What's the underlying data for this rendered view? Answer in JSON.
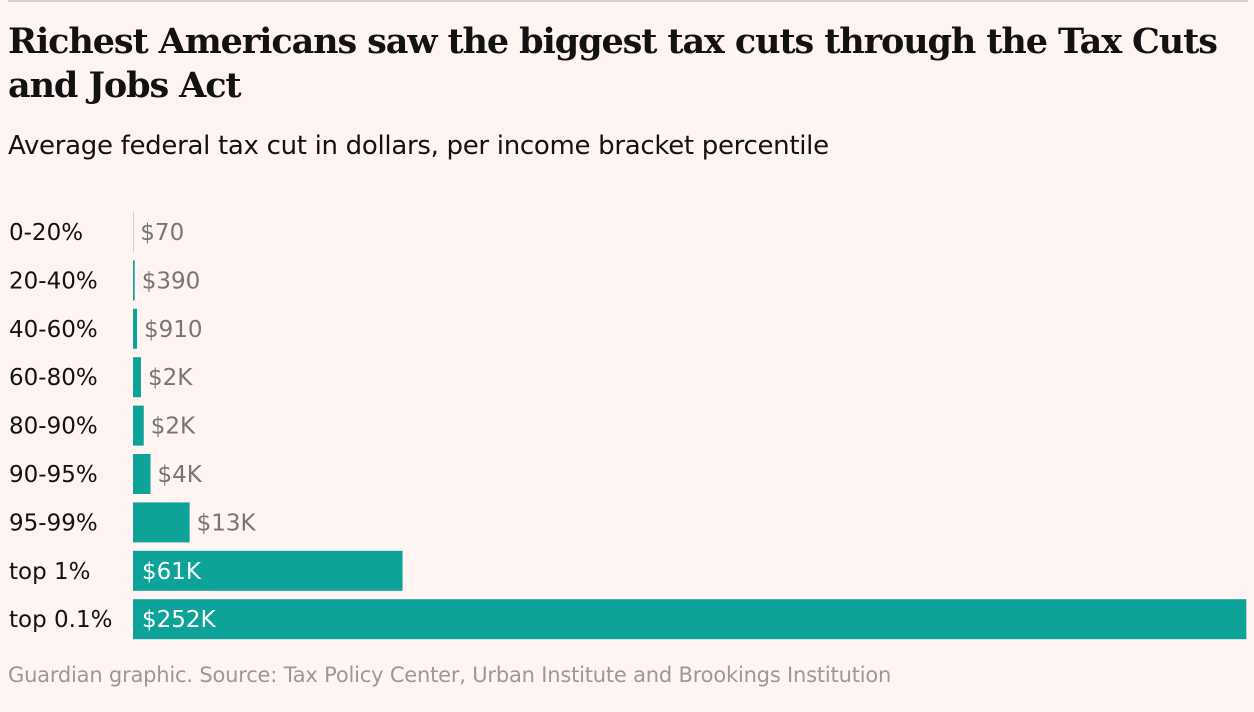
{
  "title": "Richest Americans saw the biggest tax cuts through the Tax Cuts and Jobs Act",
  "subtitle": "Average federal tax cut in dollars, per income bracket percentile",
  "source": "Guardian graphic. Source: Tax Policy Center, Urban Institute and Brookings Institution",
  "colors": {
    "background": "#fff4f2",
    "bar": "#0ea399",
    "label_outside": "#767676",
    "label_inside": "#ffffff",
    "text": "#121212",
    "source": "#999999"
  },
  "chart_data": {
    "type": "bar",
    "orientation": "horizontal",
    "title": "Richest Americans saw the biggest tax cuts through the Tax Cuts and Jobs Act",
    "subtitle": "Average federal tax cut in dollars, per income bracket percentile",
    "xlabel": "",
    "ylabel": "",
    "unit": "USD",
    "xlim": [
      0,
      252000
    ],
    "grid": false,
    "categories": [
      "0-20%",
      "20-40%",
      "40-60%",
      "60-80%",
      "80-90%",
      "90-95%",
      "95-99%",
      "top 1%",
      "top 0.1%"
    ],
    "values": [
      70,
      390,
      910,
      1810,
      2440,
      3970,
      12830,
      61090,
      252300
    ],
    "value_labels": [
      "$70",
      "$390",
      "$910",
      "$2K",
      "$2K",
      "$4K",
      "$13K",
      "$61K",
      "$252K"
    ]
  }
}
